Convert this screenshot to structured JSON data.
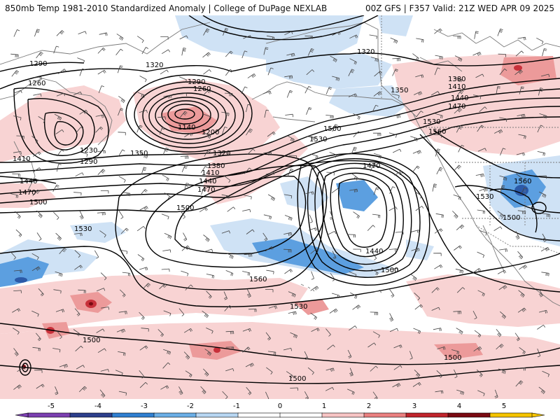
{
  "header": {
    "title_left": "850mb Temp 1981-2010 Standardized Anomaly | College of DuPage NEXLAB",
    "title_right": "00Z GFS | F357 Valid: 21Z WED APR 09 2025"
  },
  "colorbar": {
    "ticks": [
      "-5",
      "-4",
      "-3",
      "-2",
      "-1",
      "0",
      "1",
      "2",
      "3",
      "4",
      "5"
    ],
    "colors": [
      "#7b3fb0",
      "#2c3e8c",
      "#2f7fd1",
      "#6aaee6",
      "#b7d6f2",
      "#ffffff",
      "#ffffff",
      "#f7c4c4",
      "#ea8080",
      "#c0242c",
      "#7a0a12",
      "#f5c400"
    ]
  },
  "contour_labels": [
    "1290",
    "1320",
    "1260",
    "1290",
    "1260",
    "1140",
    "1200",
    "1230",
    "1290",
    "1350",
    "1320",
    "1380",
    "1410",
    "1440",
    "1470",
    "1410",
    "1440",
    "1470",
    "1500",
    "1500",
    "1530",
    "1530",
    "1470",
    "1500",
    "1440",
    "1500",
    "1560",
    "1530",
    "1500",
    "1500",
    "1320",
    "1350",
    "1380",
    "1410",
    "1440",
    "1470",
    "1530",
    "1560",
    "1560",
    "1530",
    "1500"
  ],
  "legend_colors": {
    "cold_anomaly": "#8fbfe8",
    "strong_cold_anomaly": "#3f86d3",
    "warm_anomaly": "#f6c9c9",
    "strong_warm_anomaly": "#d24a52",
    "height_contour": "#000000",
    "coastline": "#777777"
  }
}
